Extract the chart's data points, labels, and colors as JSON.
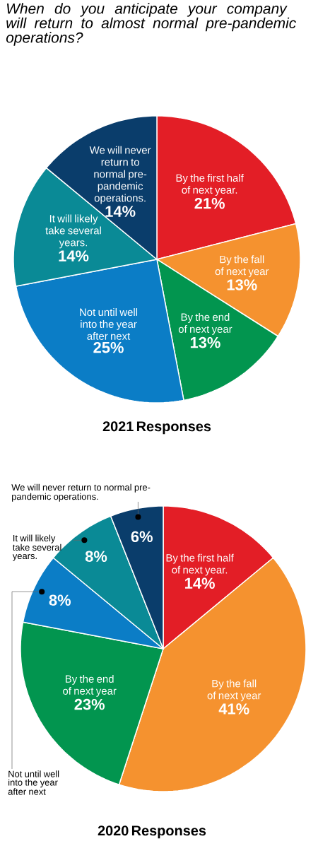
{
  "chart_data": [
    {
      "type": "pie",
      "title": "When do you anticipate your company will return to almost normal pre-pandemic operations?",
      "subtitle": "2021 Responses",
      "categories": [
        "By the first half of next year.",
        "By the fall of next year",
        "By the end of next year",
        "Not until well into the year after next",
        "It will likely take several years.",
        "We will never return to normal pre-pandemic operations."
      ],
      "values": [
        21,
        13,
        13,
        25,
        14,
        14
      ],
      "value_labels": [
        "21%",
        "13%",
        "13%",
        "25%",
        "14%",
        "14%"
      ],
      "colors": [
        "#e31e26",
        "#f5922f",
        "#02954f",
        "#0b7dc6",
        "#0a8a96",
        "#0a3d6b"
      ]
    },
    {
      "type": "pie",
      "title": "2020 Responses",
      "categories": [
        "By the first half of next year.",
        "By the fall of next year",
        "By the end of next year",
        "Not until well into the year after next",
        "It will likely take several years.",
        "We will never return to normal pre-pandemic operations."
      ],
      "values": [
        14,
        41,
        23,
        8,
        8,
        6
      ],
      "value_labels": [
        "14%",
        "41%",
        "23%",
        "8%",
        "8%",
        "6%"
      ],
      "colors": [
        "#e31e26",
        "#f5922f",
        "#02954f",
        "#0b7dc6",
        "#0a8a96",
        "#0a3d6b"
      ]
    }
  ]
}
